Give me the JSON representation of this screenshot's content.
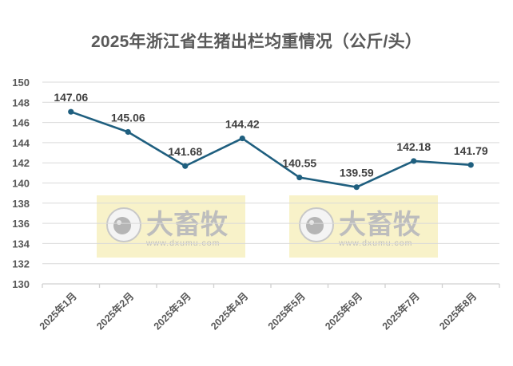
{
  "chart_data": {
    "type": "line",
    "title": "2025年浙江省生猪出栏均重情况（公斤/头）",
    "xlabel": "",
    "ylabel": "",
    "categories": [
      "2025年1月",
      "2025年2月",
      "2025年3月",
      "2025年4月",
      "2025年5月",
      "2025年6月",
      "2025年7月",
      "2025年8月"
    ],
    "series": [
      {
        "name": "出栏均重",
        "values": [
          147.06,
          145.06,
          141.68,
          144.42,
          140.55,
          139.59,
          142.18,
          141.79
        ],
        "color": "#1f5f7f"
      }
    ],
    "data_labels": [
      "147.06",
      "145.06",
      "141.68",
      "144.42",
      "140.55",
      "139.59",
      "142.18",
      "141.79"
    ],
    "ylim": [
      130,
      150
    ],
    "yticks": [
      130,
      132,
      134,
      136,
      138,
      140,
      142,
      144,
      146,
      148,
      150
    ],
    "grid": true,
    "legend": null
  },
  "watermark": {
    "brand": "大畜牧",
    "url": "www.dxumu.com"
  },
  "colors": {
    "line": "#1f5f7f",
    "grid": "#d9d9d9",
    "text": "#595959",
    "watermark_bg": "#f7f0c0"
  }
}
